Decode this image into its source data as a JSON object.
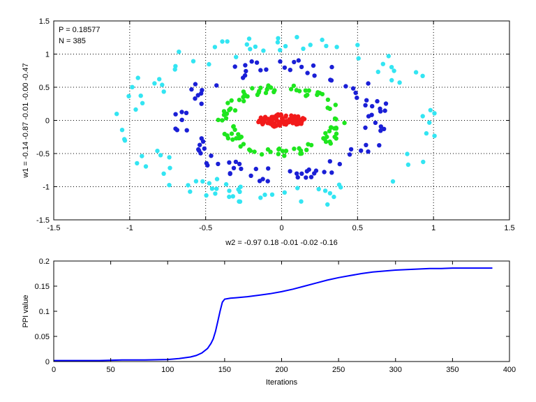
{
  "colors": {
    "background": "#ffffff",
    "axis": "#000000",
    "grid": "#000000",
    "ring_cyan": "#33e5f2",
    "ring_blue": "#1a1fd6",
    "ring_green": "#1ee61e",
    "ring_red": "#f21a1a",
    "line": "#0000ff"
  },
  "chart_data": [
    {
      "type": "scatter",
      "title": "",
      "xlabel": "w2 = -0.97  0.18  -0.01  -0.02  -0.16",
      "ylabel": "w1 = -0.14  -0.87  -0.01  -0.00  -0.47",
      "xlim": [
        -1.5,
        1.5
      ],
      "ylim": [
        -1.5,
        1.5
      ],
      "xticks": [
        "-1.5",
        "-1",
        "-0.5",
        "0",
        "0.5",
        "1",
        "1.5"
      ],
      "yticks": [
        "-1.5",
        "-1",
        "-0.5",
        "0",
        "0.5",
        "1",
        "1.5"
      ],
      "grid": true,
      "annotations": [
        "P = 0.18577",
        "N = 385"
      ],
      "series": [
        {
          "color": "#33e5f2",
          "description": "outer ring",
          "radius_x": 1.0,
          "radius_y": 1.2,
          "count": 100
        },
        {
          "color": "#1a1fd6",
          "description": "third ring",
          "radius_x": 0.65,
          "radius_y": 0.85,
          "count": 100
        },
        {
          "color": "#1ee61e",
          "description": "second ring",
          "radius_x": 0.38,
          "radius_y": 0.5,
          "count": 100
        },
        {
          "color": "#f21a1a",
          "description": "inner cluster",
          "radius_x": 0.16,
          "radius_y": 0.1,
          "count": 85
        }
      ]
    },
    {
      "type": "line",
      "title": "",
      "xlabel": "Iterations",
      "ylabel": "PPI value",
      "xlim": [
        0,
        400
      ],
      "ylim": [
        0,
        0.2
      ],
      "xticks": [
        "0",
        "50",
        "100",
        "150",
        "200",
        "250",
        "300",
        "350",
        "400"
      ],
      "yticks": [
        "0",
        "0.05",
        "0.1",
        "0.15",
        "0.2"
      ],
      "grid": false,
      "x": [
        0,
        20,
        40,
        60,
        80,
        100,
        110,
        120,
        125,
        130,
        135,
        138,
        140,
        142,
        144,
        146,
        148,
        150,
        155,
        160,
        170,
        180,
        190,
        200,
        210,
        220,
        230,
        240,
        250,
        260,
        270,
        280,
        290,
        300,
        310,
        320,
        330,
        340,
        350,
        360,
        370,
        385
      ],
      "y": [
        0.002,
        0.002,
        0.002,
        0.003,
        0.003,
        0.004,
        0.006,
        0.009,
        0.012,
        0.017,
        0.026,
        0.036,
        0.045,
        0.06,
        0.08,
        0.1,
        0.118,
        0.124,
        0.126,
        0.127,
        0.129,
        0.132,
        0.135,
        0.139,
        0.144,
        0.15,
        0.156,
        0.162,
        0.167,
        0.171,
        0.175,
        0.178,
        0.18,
        0.182,
        0.183,
        0.184,
        0.185,
        0.185,
        0.186,
        0.186,
        0.186,
        0.186
      ]
    }
  ]
}
